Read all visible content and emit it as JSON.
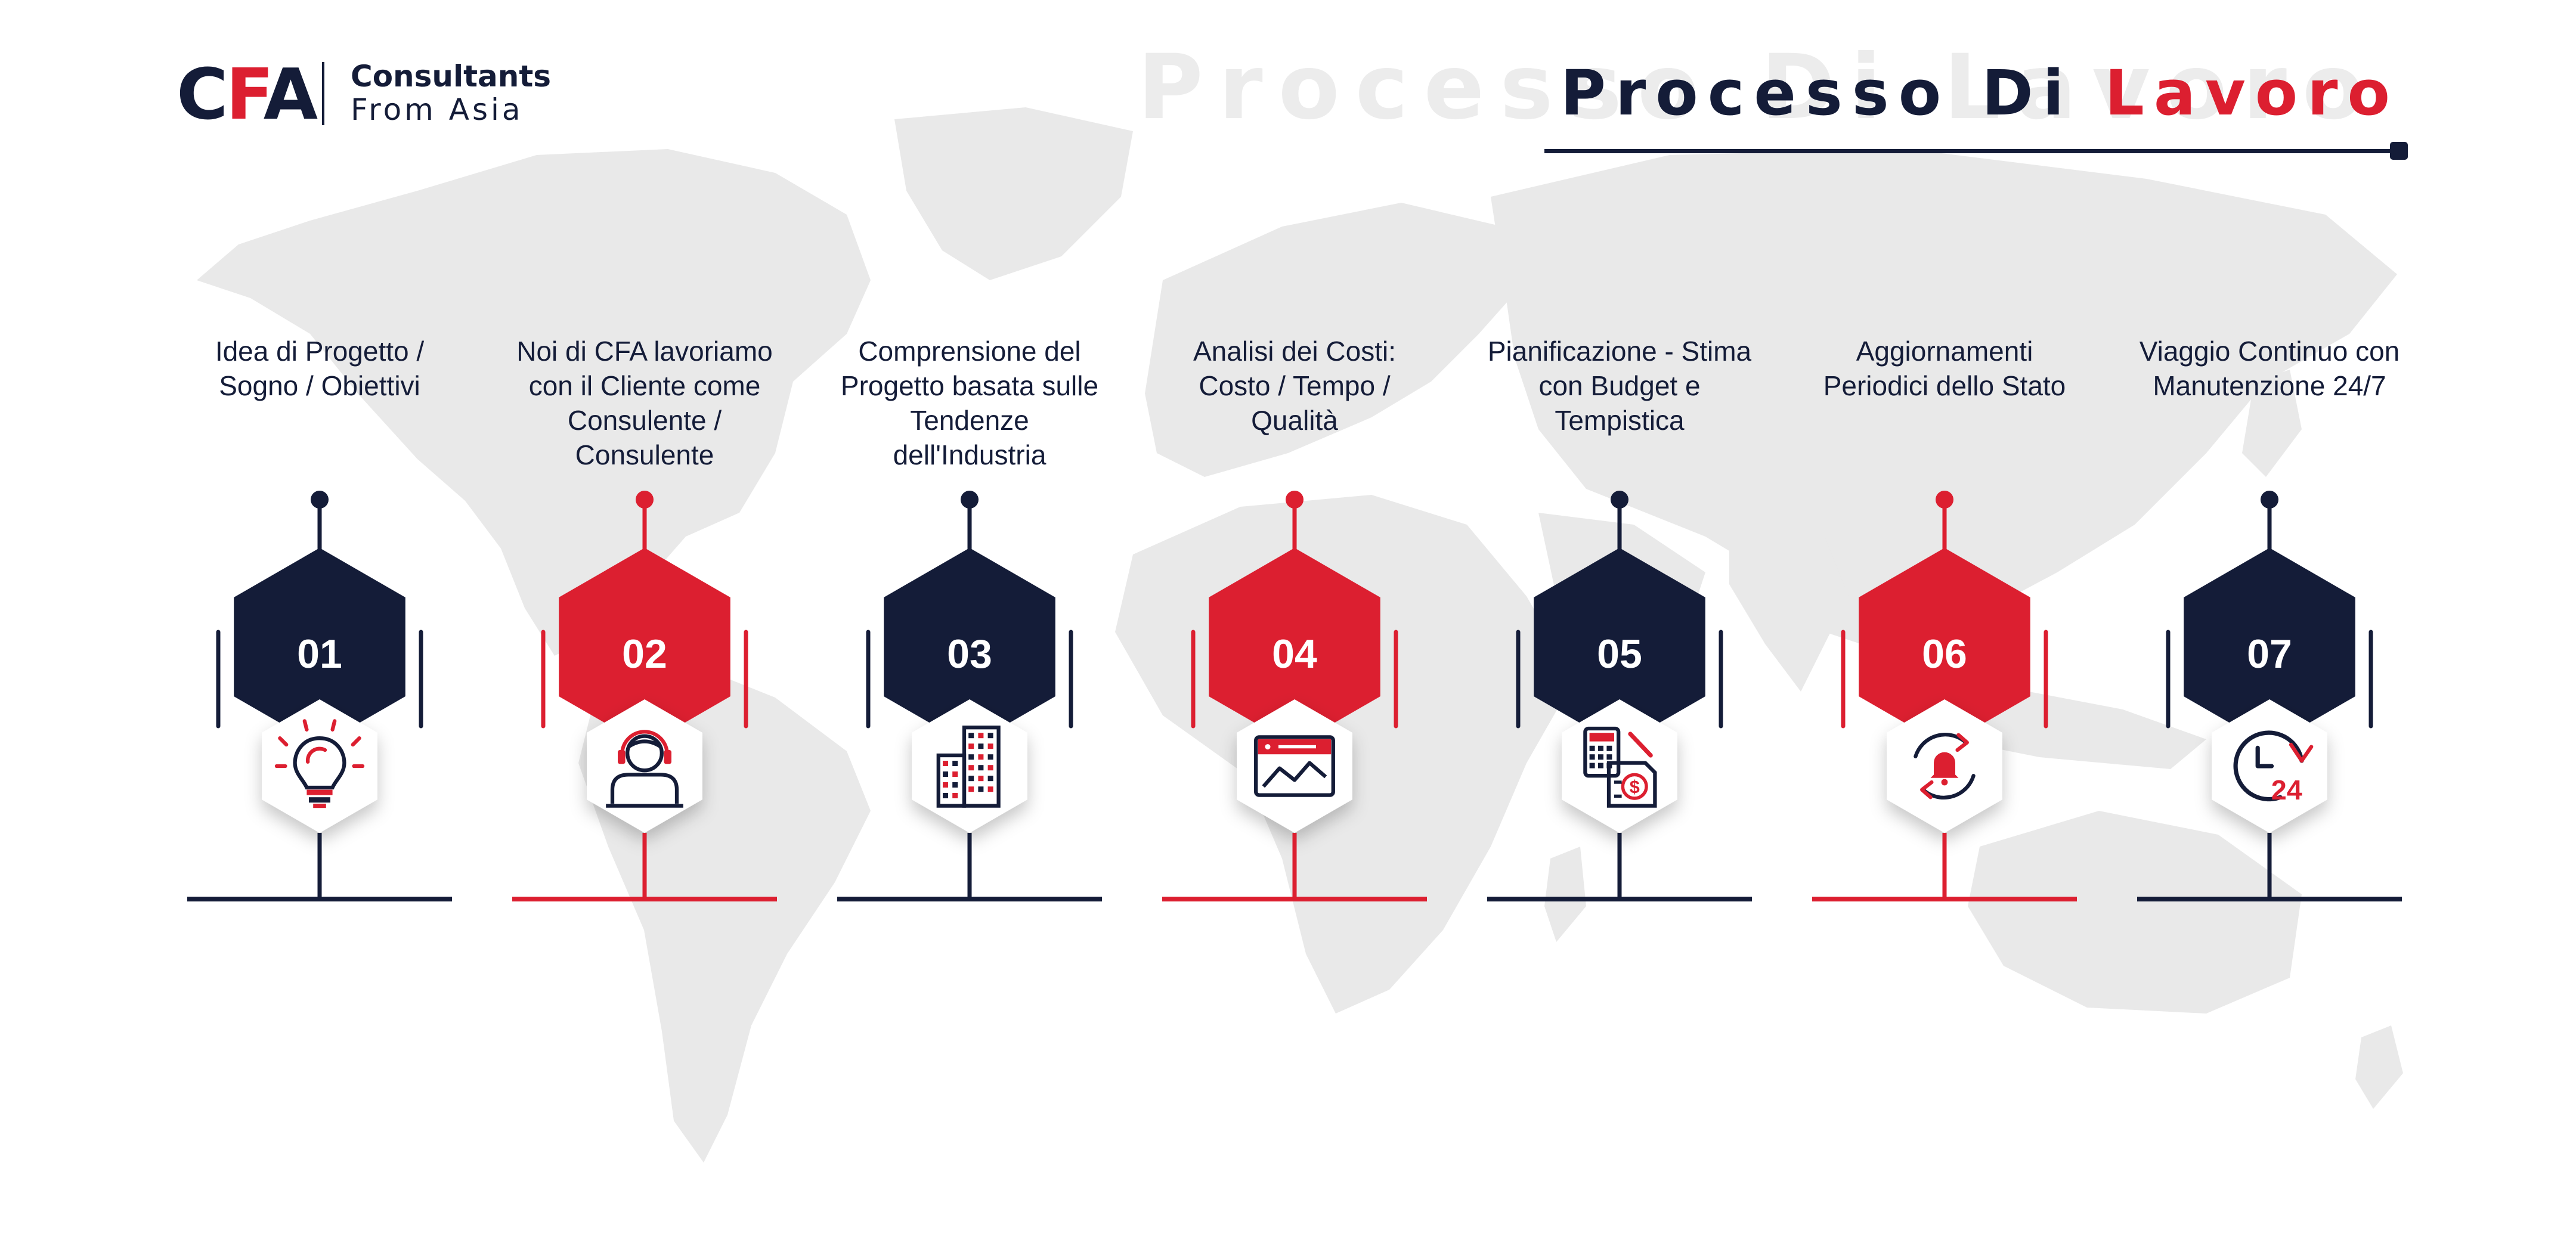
{
  "brand": {
    "logo_mark": "CFA",
    "name_line1": "Consultants",
    "name_line2": "From Asia"
  },
  "header": {
    "title_main": "Processo Di",
    "title_accent": "Lavoro"
  },
  "colors": {
    "navy": "#141c38",
    "red": "#dc1f30",
    "map": "#e9e9e9"
  },
  "steps": [
    {
      "number": "01",
      "label": "Idea di Progetto / Sogno / Obiettivi",
      "color": "navy",
      "icon": "lightbulb-icon"
    },
    {
      "number": "02",
      "label": "Noi di CFA lavoriamo con il Cliente come Consulente / Consulente",
      "color": "red",
      "icon": "consultant-headset-icon"
    },
    {
      "number": "03",
      "label": "Comprensione del Progetto basata sulle Tendenze dell'Industria",
      "color": "navy",
      "icon": "buildings-icon"
    },
    {
      "number": "04",
      "label": "Analisi dei Costi: Costo / Tempo / Qualità",
      "color": "red",
      "icon": "cost-chart-icon"
    },
    {
      "number": "05",
      "label": "Pianificazione - Stima con Budget e Tempistica",
      "color": "navy",
      "icon": "budget-calculator-icon"
    },
    {
      "number": "06",
      "label": "Aggiornamenti Periodici dello Stato",
      "color": "red",
      "icon": "notification-cycle-icon"
    },
    {
      "number": "07",
      "label": "Viaggio Continuo con Manutenzione 24/7",
      "color": "navy",
      "icon": "clock-24-7-icon"
    }
  ]
}
